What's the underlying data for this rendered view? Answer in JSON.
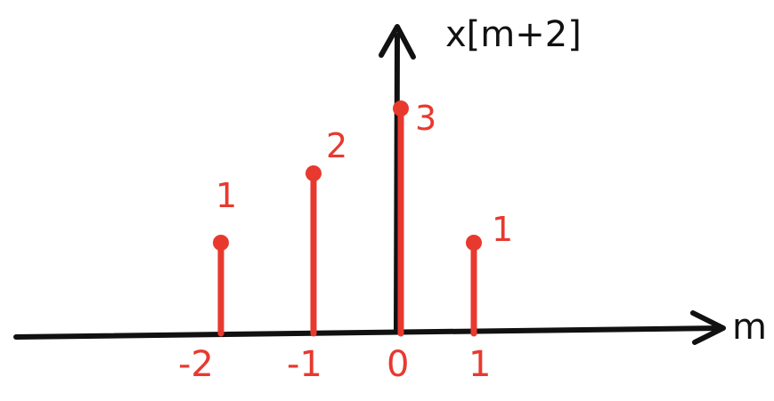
{
  "chart_data": {
    "type": "stem",
    "title": "",
    "xlabel": "m",
    "ylabel": "x[m+2]",
    "x": [
      -2,
      -1,
      0,
      1
    ],
    "values": [
      1,
      2,
      3,
      1
    ],
    "tick_labels": [
      "-2",
      "-1",
      "0",
      "1"
    ],
    "data_labels": [
      "1",
      "2",
      "3",
      "1"
    ],
    "ylim": [
      0,
      3
    ],
    "grid": false,
    "legend": "none"
  },
  "colors": {
    "stem": "#e8392f",
    "axis": "#111111",
    "background": "#ffffff"
  }
}
